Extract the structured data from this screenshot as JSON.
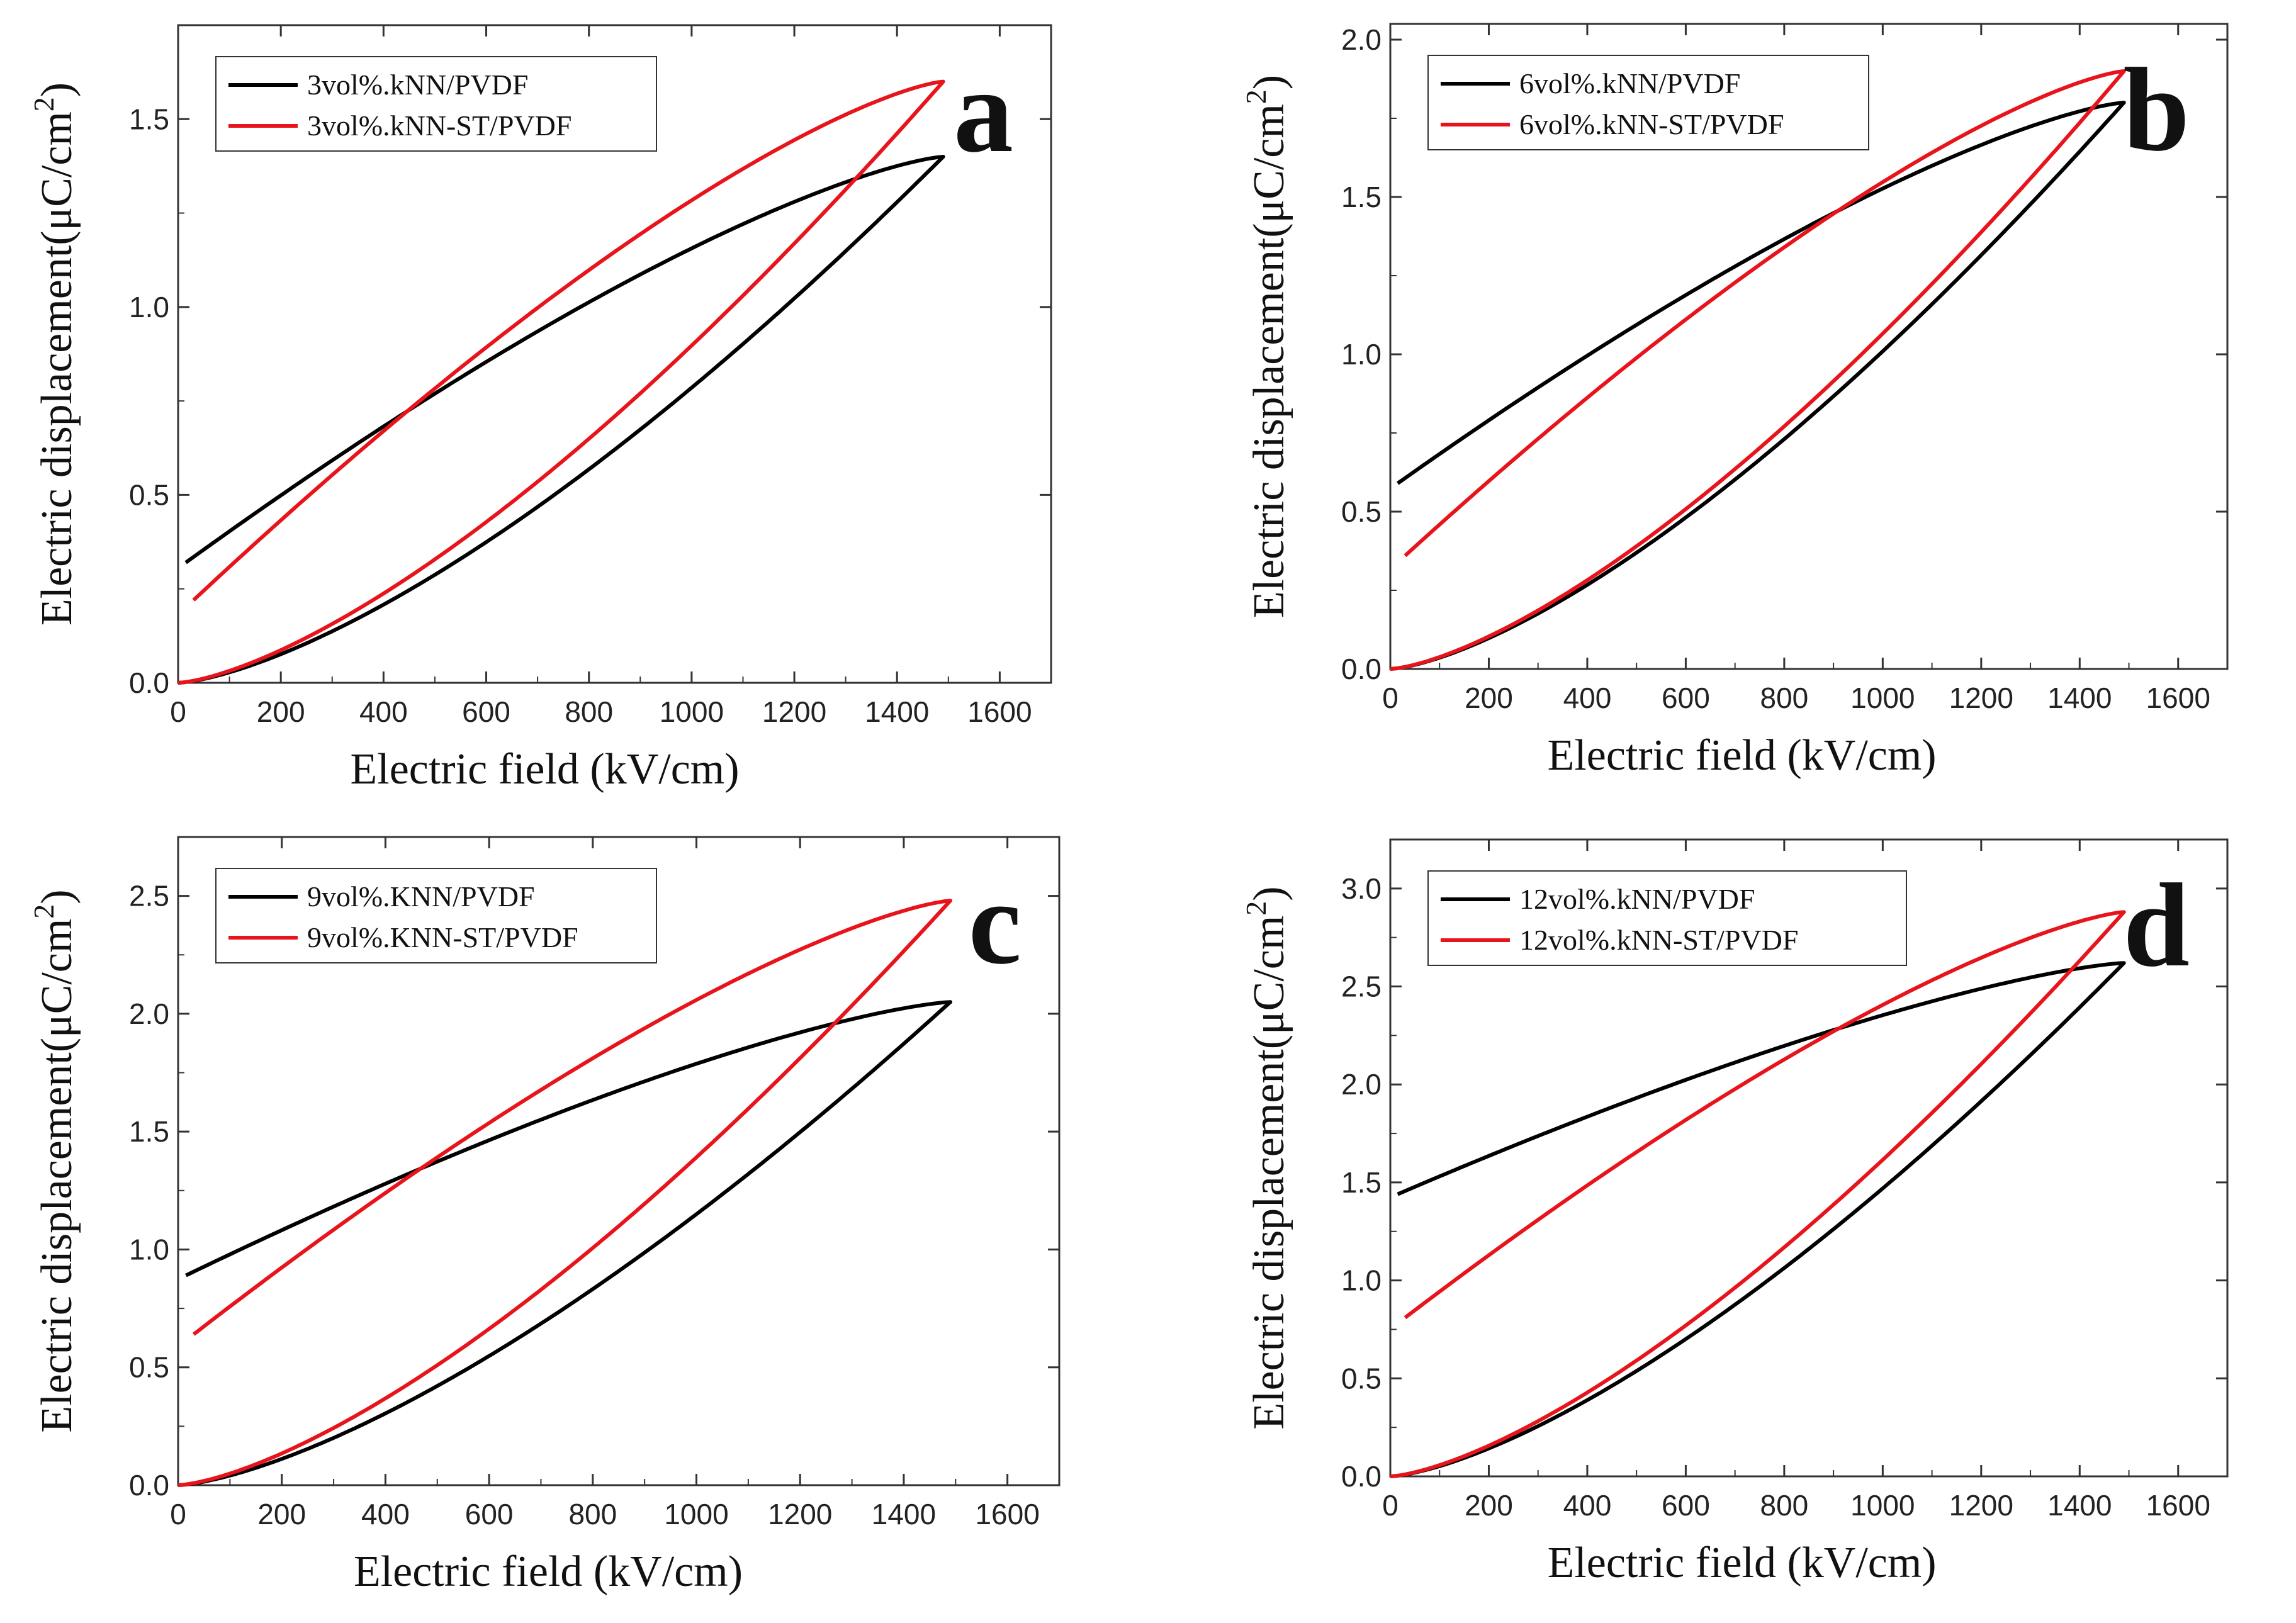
{
  "colors": {
    "black_series": "#000000",
    "red_series": "#e8141c",
    "frame": "#333333"
  },
  "chart_data": [
    {
      "type": "line",
      "panel_label": "a",
      "xlabel": "Electric field (kV/cm)",
      "ylabel": "Electric displacement(μC/cm",
      "ylabel_sup": "2",
      "ylabel_close": ")",
      "xlim": [
        0,
        1700
      ],
      "ylim": [
        0,
        1.75
      ],
      "xticks": [
        "0",
        "200",
        "400",
        "600",
        "800",
        "1000",
        "1200",
        "1400",
        "1600"
      ],
      "yticks": [
        "0.0",
        "0.5",
        "1.0",
        "1.5"
      ],
      "legend_position": "top-left",
      "series": [
        {
          "name": "3vol%.kNN/PVDF",
          "color": "#000000",
          "Emax": 1490,
          "Dmax": 1.4,
          "Dr": 0.32,
          "Emin": 15
        },
        {
          "name": "3vol%.kNN-ST/PVDF",
          "color": "#e8141c",
          "Emax": 1490,
          "Dmax": 1.6,
          "Dr": 0.22,
          "Emin": 30
        }
      ]
    },
    {
      "type": "line",
      "panel_label": "b",
      "xlabel": "Electric field (kV/cm)",
      "ylabel": "Electric displacement(μC/cm",
      "ylabel_sup": "2",
      "ylabel_close": ")",
      "xlim": [
        0,
        1700
      ],
      "ylim": [
        0,
        2.05
      ],
      "xticks": [
        "0",
        "200",
        "400",
        "600",
        "800",
        "1000",
        "1200",
        "1400",
        "1600"
      ],
      "yticks": [
        "0.0",
        "0.5",
        "1.0",
        "1.5",
        "2.0"
      ],
      "legend_position": "top-left",
      "series": [
        {
          "name": "6vol%.kNN/PVDF",
          "color": "#000000",
          "Emax": 1490,
          "Dmax": 1.8,
          "Dr": 0.59,
          "Emin": 15
        },
        {
          "name": "6vol%.kNN-ST/PVDF",
          "color": "#e8141c",
          "Emax": 1490,
          "Dmax": 1.9,
          "Dr": 0.36,
          "Emin": 30
        }
      ]
    },
    {
      "type": "line",
      "panel_label": "c",
      "xlabel": "Electric field (kV/cm)",
      "ylabel": "Electric displacement(μC/cm",
      "ylabel_sup": "2",
      "ylabel_close": ")",
      "xlim": [
        0,
        1700
      ],
      "ylim": [
        0,
        2.75
      ],
      "xticks": [
        "0",
        "200",
        "400",
        "600",
        "800",
        "1000",
        "1200",
        "1400",
        "1600"
      ],
      "yticks": [
        "0.0",
        "0.5",
        "1.0",
        "1.5",
        "2.0",
        "2.5"
      ],
      "legend_position": "top-left",
      "series": [
        {
          "name": "9vol%.KNN/PVDF",
          "color": "#000000",
          "Emax": 1490,
          "Dmax": 2.05,
          "Dr": 0.89,
          "Emin": 15
        },
        {
          "name": "9vol%.KNN-ST/PVDF",
          "color": "#e8141c",
          "Emax": 1490,
          "Dmax": 2.48,
          "Dr": 0.64,
          "Emin": 30
        }
      ]
    },
    {
      "type": "line",
      "panel_label": "d",
      "xlabel": "Electric field (kV/cm)",
      "ylabel": "Electric displacement(μC/cm",
      "ylabel_sup": "2",
      "ylabel_close": ")",
      "xlim": [
        0,
        1700
      ],
      "ylim": [
        0,
        3.25
      ],
      "xticks": [
        "0",
        "200",
        "400",
        "600",
        "800",
        "1000",
        "1200",
        "1400",
        "1600"
      ],
      "yticks": [
        "0.0",
        "0.5",
        "1.0",
        "1.5",
        "2.0",
        "2.5",
        "3.0"
      ],
      "legend_position": "top-left",
      "series": [
        {
          "name": "12vol%.kNN/PVDF",
          "color": "#000000",
          "Emax": 1490,
          "Dmax": 2.62,
          "Dr": 1.44,
          "Emin": 15
        },
        {
          "name": "12vol%.kNN-ST/PVDF",
          "color": "#e8141c",
          "Emax": 1490,
          "Dmax": 2.88,
          "Dr": 0.81,
          "Emin": 30
        }
      ]
    }
  ]
}
